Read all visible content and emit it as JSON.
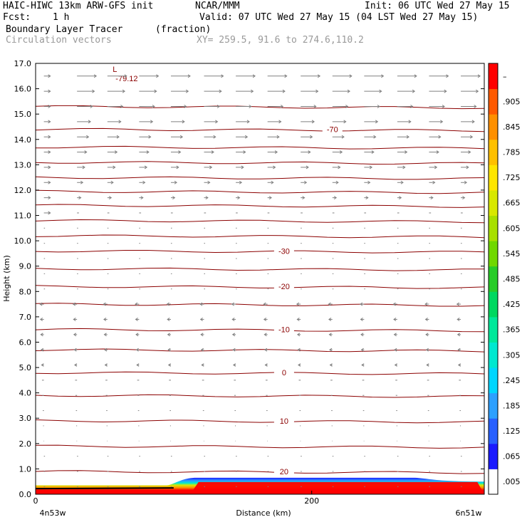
{
  "header": {
    "model_line": "HAIC-HIWC 13km ARW-GFS init",
    "org": "NCAR/MMM",
    "init": "Init: 06 UTC Wed 27 May 15",
    "fcst_label": "Fcst:",
    "fcst_value": "1 h",
    "valid": "Valid: 07 UTC Wed 27 May 15 (04 LST Wed 27 May 15)",
    "field_name": "Boundary Layer Tracer",
    "field_units": "(fraction)",
    "overlay_name": "Circulation vectors",
    "xy_info": "XY= 259.5, 91.6 to 274.6,110.2"
  },
  "chart_data": {
    "type": "heatmap",
    "ylabel": "Height (km)",
    "xlabel": "Distance (km)",
    "ylim": [
      0,
      17
    ],
    "xlim": [
      0,
      325
    ],
    "y_ticks": [
      "0.0",
      "1.0",
      "2.0",
      "3.0",
      "4.0",
      "5.0",
      "6.0",
      "7.0",
      "8.0",
      "9.0",
      "10.0",
      "11.0",
      "12.0",
      "13.0",
      "14.0",
      "15.0",
      "16.0",
      "17.0"
    ],
    "x_ticks": [
      {
        "value": 0,
        "label": "0"
      },
      {
        "value": 200,
        "label": "200"
      }
    ],
    "x_endpoints": {
      "left": "4n53w",
      "right": "6n51w"
    },
    "colorbar_labels": [
      ".005",
      ".065",
      ".125",
      ".185",
      ".245",
      ".305",
      ".365",
      ".425",
      ".485",
      ".545",
      ".605",
      ".665",
      ".725",
      ".785",
      ".845",
      ".905",
      "–"
    ],
    "colorbar_colors": [
      "#ffffff",
      "#1a1aff",
      "#2860ff",
      "#2da0ff",
      "#00d6ff",
      "#00e8d0",
      "#00e89a",
      "#00d860",
      "#28cc28",
      "#70d800",
      "#a8e000",
      "#d8e800",
      "#ffe600",
      "#ffc000",
      "#ff9000",
      "#ff5a00",
      "#ff0000"
    ],
    "temperature_contours": {
      "color": "#8b0000",
      "levels_km": [
        0.9,
        1.9,
        2.9,
        3.9,
        4.8,
        5.7,
        6.5,
        7.5,
        8.2,
        8.9,
        9.6,
        10.2,
        10.8,
        11.4,
        11.95,
        12.5,
        13.1,
        13.7,
        14.4,
        15.3
      ],
      "labels": [
        {
          "text": "20",
          "x": 180,
          "y": 0.9
        },
        {
          "text": "10",
          "x": 180,
          "y": 2.9
        },
        {
          "text": "0",
          "x": 180,
          "y": 4.8
        },
        {
          "text": "-10",
          "x": 180,
          "y": 6.5
        },
        {
          "text": "-20",
          "x": 180,
          "y": 8.2
        },
        {
          "text": "-30",
          "x": 180,
          "y": 9.6
        },
        {
          "text": "-70",
          "x": 215,
          "y": 14.4
        }
      ]
    },
    "low_marker": {
      "symbol": "L",
      "value": "-79.12",
      "x": 60,
      "y": 16.55
    },
    "tracer_region": {
      "x_start": 0,
      "x_end": 325,
      "top_km": 0.6
    }
  },
  "colors": {
    "axis": "#000000",
    "contour": "#8b0000",
    "vector": "#808080",
    "header_gray": "#9a9a9a"
  }
}
